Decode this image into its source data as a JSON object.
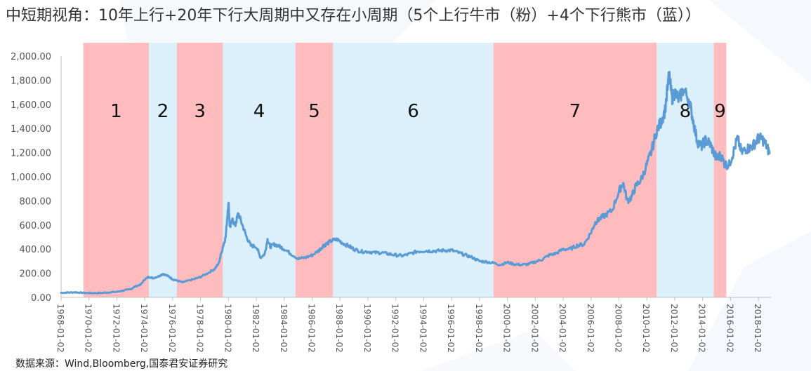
{
  "title": "中短期视角：10年上行+20年下行大周期中又存在小周期（5个上行牛市（粉）+4个下行熊市（蓝））",
  "source": "数据来源：Wind,Bloomberg,国泰君安证券研究",
  "colors": {
    "line": "#5b9bd5",
    "pink": "#ffbcbe",
    "blue": "#dcf0fb",
    "axis_text": "#555555",
    "axis_line": "#bfbfbf",
    "label_text": "#111111"
  },
  "chart_data": {
    "type": "line",
    "ylim": [
      0,
      2000
    ],
    "xlim_year": [
      1968.0,
      2018.9
    ],
    "y_ticks": [
      {
        "value": 0,
        "label": "0.00"
      },
      {
        "value": 200,
        "label": "200.00"
      },
      {
        "value": 400,
        "label": "400.00"
      },
      {
        "value": 600,
        "label": "600.00"
      },
      {
        "value": 800,
        "label": "800.00"
      },
      {
        "value": 1000,
        "label": "1,000.00"
      },
      {
        "value": 1200,
        "label": "1,200.00"
      },
      {
        "value": 1400,
        "label": "1,400.00"
      },
      {
        "value": 1600,
        "label": "1,600.00"
      },
      {
        "value": 1800,
        "label": "1,800.00"
      },
      {
        "value": 2000,
        "label": "2,000.00"
      }
    ],
    "x_ticks": [
      {
        "year": 1968,
        "label": "1968-01-02"
      },
      {
        "year": 1970,
        "label": "1970-01-02"
      },
      {
        "year": 1972,
        "label": "1972-01-02"
      },
      {
        "year": 1974,
        "label": "1974-01-02"
      },
      {
        "year": 1976,
        "label": "1976-01-02"
      },
      {
        "year": 1978,
        "label": "1978-01-02"
      },
      {
        "year": 1980,
        "label": "1980-01-02"
      },
      {
        "year": 1982,
        "label": "1982-01-02"
      },
      {
        "year": 1984,
        "label": "1984-01-02"
      },
      {
        "year": 1986,
        "label": "1986-01-02"
      },
      {
        "year": 1988,
        "label": "1988-01-02"
      },
      {
        "year": 1990,
        "label": "1990-01-02"
      },
      {
        "year": 1992,
        "label": "1992-01-02"
      },
      {
        "year": 1994,
        "label": "1994-01-02"
      },
      {
        "year": 1996,
        "label": "1996-01-02"
      },
      {
        "year": 1998,
        "label": "1998-01-02"
      },
      {
        "year": 2000,
        "label": "2000-01-02"
      },
      {
        "year": 2002,
        "label": "2002-01-02"
      },
      {
        "year": 2004,
        "label": "2004-01-02"
      },
      {
        "year": 2006,
        "label": "2006-01-02"
      },
      {
        "year": 2008,
        "label": "2008-01-02"
      },
      {
        "year": 2010,
        "label": "2010-01-02"
      },
      {
        "year": 2012,
        "label": "2012-01-02"
      },
      {
        "year": 2014,
        "label": "2014-01-02"
      },
      {
        "year": 2016,
        "label": "2016-01-02"
      },
      {
        "year": 2018,
        "label": "2018-01-02"
      }
    ],
    "periods": [
      {
        "label": "1",
        "kind": "pink",
        "start": 1969.6,
        "end": 1974.3
      },
      {
        "label": "2",
        "kind": "blue",
        "start": 1974.3,
        "end": 1976.3
      },
      {
        "label": "3",
        "kind": "pink",
        "start": 1976.3,
        "end": 1979.6
      },
      {
        "label": "4",
        "kind": "blue",
        "start": 1979.6,
        "end": 1984.8
      },
      {
        "label": "5",
        "kind": "pink",
        "start": 1984.8,
        "end": 1987.5
      },
      {
        "label": "6",
        "kind": "blue",
        "start": 1987.5,
        "end": 1999.0
      },
      {
        "label": "7",
        "kind": "pink",
        "start": 1999.0,
        "end": 2010.7
      },
      {
        "label": "8",
        "kind": "blue",
        "start": 2010.7,
        "end": 2014.8
      },
      {
        "label": "9",
        "kind": "pink",
        "start": 2014.8,
        "end": 2015.7
      }
    ],
    "series": [
      {
        "points": [
          [
            1968.0,
            38
          ],
          [
            1968.5,
            40
          ],
          [
            1969.0,
            42
          ],
          [
            1969.5,
            38
          ],
          [
            1970.0,
            36
          ],
          [
            1970.5,
            36
          ],
          [
            1971.0,
            38
          ],
          [
            1971.5,
            42
          ],
          [
            1972.0,
            46
          ],
          [
            1972.5,
            58
          ],
          [
            1973.0,
            68
          ],
          [
            1973.3,
            90
          ],
          [
            1973.7,
            105
          ],
          [
            1974.0,
            150
          ],
          [
            1974.3,
            170
          ],
          [
            1974.6,
            160
          ],
          [
            1975.0,
            175
          ],
          [
            1975.3,
            195
          ],
          [
            1975.7,
            175
          ],
          [
            1976.0,
            150
          ],
          [
            1976.3,
            140
          ],
          [
            1976.7,
            125
          ],
          [
            1977.0,
            135
          ],
          [
            1977.5,
            150
          ],
          [
            1978.0,
            170
          ],
          [
            1978.5,
            200
          ],
          [
            1979.0,
            235
          ],
          [
            1979.3,
            280
          ],
          [
            1979.6,
            420
          ],
          [
            1979.8,
            500
          ],
          [
            1980.0,
            800
          ],
          [
            1980.1,
            580
          ],
          [
            1980.3,
            640
          ],
          [
            1980.5,
            600
          ],
          [
            1980.7,
            700
          ],
          [
            1981.0,
            600
          ],
          [
            1981.3,
            500
          ],
          [
            1981.6,
            430
          ],
          [
            1982.0,
            420
          ],
          [
            1982.3,
            330
          ],
          [
            1982.6,
            360
          ],
          [
            1982.8,
            480
          ],
          [
            1983.0,
            420
          ],
          [
            1983.3,
            440
          ],
          [
            1983.7,
            420
          ],
          [
            1984.0,
            400
          ],
          [
            1984.5,
            360
          ],
          [
            1985.0,
            320
          ],
          [
            1985.5,
            330
          ],
          [
            1986.0,
            350
          ],
          [
            1986.5,
            390
          ],
          [
            1986.8,
            430
          ],
          [
            1987.0,
            440
          ],
          [
            1987.4,
            470
          ],
          [
            1987.8,
            480
          ],
          [
            1988.2,
            450
          ],
          [
            1988.7,
            420
          ],
          [
            1989.0,
            400
          ],
          [
            1989.5,
            380
          ],
          [
            1990.0,
            380
          ],
          [
            1990.5,
            370
          ],
          [
            1991.0,
            370
          ],
          [
            1991.5,
            360
          ],
          [
            1992.0,
            350
          ],
          [
            1992.5,
            345
          ],
          [
            1993.0,
            360
          ],
          [
            1993.5,
            380
          ],
          [
            1994.0,
            385
          ],
          [
            1994.5,
            385
          ],
          [
            1995.0,
            385
          ],
          [
            1995.5,
            390
          ],
          [
            1996.0,
            390
          ],
          [
            1996.5,
            370
          ],
          [
            1997.0,
            350
          ],
          [
            1997.5,
            330
          ],
          [
            1998.0,
            300
          ],
          [
            1998.5,
            295
          ],
          [
            1999.0,
            285
          ],
          [
            1999.5,
            270
          ],
          [
            2000.0,
            290
          ],
          [
            2000.5,
            275
          ],
          [
            2001.0,
            270
          ],
          [
            2001.5,
            275
          ],
          [
            2002.0,
            295
          ],
          [
            2002.5,
            315
          ],
          [
            2003.0,
            350
          ],
          [
            2003.5,
            365
          ],
          [
            2004.0,
            400
          ],
          [
            2004.5,
            400
          ],
          [
            2005.0,
            430
          ],
          [
            2005.5,
            440
          ],
          [
            2006.0,
            540
          ],
          [
            2006.3,
            620
          ],
          [
            2006.6,
            650
          ],
          [
            2007.0,
            680
          ],
          [
            2007.5,
            720
          ],
          [
            2008.0,
            880
          ],
          [
            2008.3,
            950
          ],
          [
            2008.6,
            800
          ],
          [
            2008.9,
            830
          ],
          [
            2009.2,
            920
          ],
          [
            2009.6,
            980
          ],
          [
            2010.0,
            1100
          ],
          [
            2010.3,
            1200
          ],
          [
            2010.7,
            1380
          ],
          [
            2011.0,
            1450
          ],
          [
            2011.3,
            1550
          ],
          [
            2011.6,
            1850
          ],
          [
            2011.8,
            1650
          ],
          [
            2012.0,
            1700
          ],
          [
            2012.3,
            1640
          ],
          [
            2012.6,
            1720
          ],
          [
            2013.0,
            1650
          ],
          [
            2013.3,
            1480
          ],
          [
            2013.6,
            1300
          ],
          [
            2013.9,
            1250
          ],
          [
            2014.2,
            1300
          ],
          [
            2014.5,
            1280
          ],
          [
            2014.8,
            1200
          ],
          [
            2015.0,
            1150
          ],
          [
            2015.3,
            1180
          ],
          [
            2015.6,
            1100
          ],
          [
            2015.9,
            1100
          ],
          [
            2016.2,
            1200
          ],
          [
            2016.5,
            1320
          ],
          [
            2016.8,
            1200
          ],
          [
            2017.1,
            1230
          ],
          [
            2017.4,
            1240
          ],
          [
            2017.7,
            1270
          ],
          [
            2018.0,
            1320
          ],
          [
            2018.3,
            1310
          ],
          [
            2018.6,
            1250
          ],
          [
            2018.8,
            1195
          ]
        ]
      }
    ]
  }
}
